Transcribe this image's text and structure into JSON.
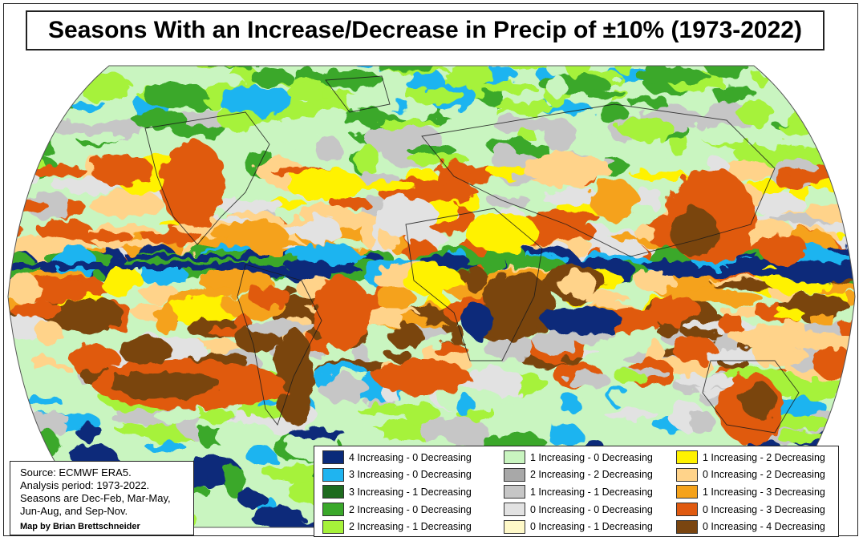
{
  "title": "Seasons With an Increase/Decrease in Precip of ±10% (1973-2022)",
  "map": {
    "projection": "Robinson-like world map, Pacific-split (Africa centered)",
    "ocean_color": "#ffffff"
  },
  "source_note": {
    "lines": [
      "Source: ECMWF ERA5.",
      "Analysis period: 1973-2022.",
      "Seasons are Dec-Feb, Mar-May,",
      "Jun-Aug, and Sep-Nov."
    ],
    "credit": "Map by Brian Brettschneider"
  },
  "legend": [
    {
      "label": "4 Increasing - 0 Decreasing",
      "color": "#0a2a7a"
    },
    {
      "label": "3 Increasing - 0 Decreasing",
      "color": "#1fb4f0"
    },
    {
      "label": "3 Increasing - 1 Decreasing",
      "color": "#1e6b1e"
    },
    {
      "label": "2 Increasing - 0 Decreasing",
      "color": "#3aa82a"
    },
    {
      "label": "2 Increasing - 1 Decreasing",
      "color": "#a6f23a"
    },
    {
      "label": "1 Increasing - 0 Decreasing",
      "color": "#c9f5c0"
    },
    {
      "label": "2 Increasing - 2 Decreasing",
      "color": "#a8a8a8"
    },
    {
      "label": "1 Increasing - 1 Decreasing",
      "color": "#c6c6c6"
    },
    {
      "label": "0 Increasing - 0 Decreasing",
      "color": "#e2e2e2"
    },
    {
      "label": "0 Increasing - 1 Decreasing",
      "color": "#fff9c8"
    },
    {
      "label": "1 Increasing - 2 Decreasing",
      "color": "#fff200"
    },
    {
      "label": "0 Increasing - 2 Decreasing",
      "color": "#ffd38a"
    },
    {
      "label": "1 Increasing - 3 Decreasing",
      "color": "#f5a21a"
    },
    {
      "label": "0 Increasing - 3 Decreasing",
      "color": "#e05a10"
    },
    {
      "label": "0 Increasing - 4 Decreasing",
      "color": "#7a4510"
    }
  ]
}
